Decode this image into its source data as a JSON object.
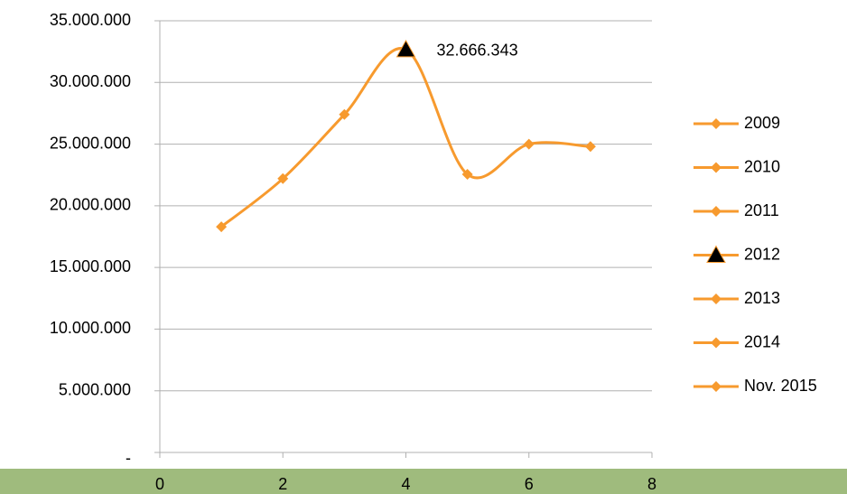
{
  "chart_data": {
    "type": "line",
    "smooth": true,
    "x": [
      1,
      2,
      3,
      4,
      5,
      6,
      7
    ],
    "values": [
      18300000,
      22200000,
      27400000,
      32666343,
      22550000,
      25000000,
      24800000
    ],
    "value_labels": [
      null,
      null,
      null,
      "32.666.343",
      null,
      null,
      null
    ],
    "legend": [
      "2009",
      "2010",
      "2011",
      "2012",
      "2013",
      "2014",
      "Nov. 2015"
    ],
    "color": "#f79a2e",
    "markers": [
      "diamond",
      "diamond",
      "diamond",
      "triangle",
      "diamond",
      "diamond",
      "diamond"
    ],
    "marker_colors": [
      "#f79a2e",
      "#f79a2e",
      "#f79a2e",
      "#000000",
      "#f79a2e",
      "#f79a2e",
      "#f79a2e"
    ],
    "xlim": [
      0,
      8
    ],
    "xticks": [
      0,
      2,
      4,
      6,
      8
    ],
    "ylim": [
      0,
      35000000
    ],
    "yticks": [
      {
        "value": 0,
        "label": "-"
      },
      {
        "value": 5000000,
        "label": "5.000.000"
      },
      {
        "value": 10000000,
        "label": "10.000.000"
      },
      {
        "value": 15000000,
        "label": "15.000.000"
      },
      {
        "value": 20000000,
        "label": "20.000.000"
      },
      {
        "value": 25000000,
        "label": "25.000.000"
      },
      {
        "value": 30000000,
        "label": "30.000.000"
      },
      {
        "value": 35000000,
        "label": "35.000.000"
      }
    ],
    "grid": true,
    "legend_position": "right"
  }
}
